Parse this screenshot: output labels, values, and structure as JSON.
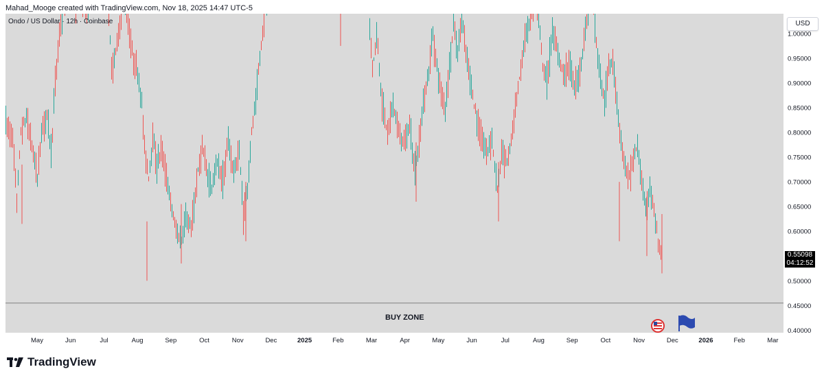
{
  "header": {
    "credit": "Mahad_Mooge created with TradingView.com, Nov 18, 2025 14:47 UTC-5"
  },
  "chart": {
    "legend": "Ondo / US Dollar · 12h · Coinbase",
    "currency_button": "USD",
    "last_price": "0.55098",
    "countdown": "04:12:52",
    "zone_label": "BUY ZONE",
    "footer_brand": "TradingView"
  },
  "colors": {
    "up": "#26a69a",
    "down": "#ef5350",
    "background": "#dadada",
    "zone_line": "#7f7f7f"
  },
  "icons": {
    "event_1": "us-flag-icon",
    "event_2": "blue-flag-icon",
    "logo": "tradingview-logo-icon"
  },
  "chart_data": {
    "type": "candlestick",
    "symbol": "Ondo / US Dollar",
    "interval": "12h",
    "exchange": "Coinbase",
    "ylim": [
      0.395,
      1.04
    ],
    "y_ticks": [
      1.0,
      0.95,
      0.9,
      0.85,
      0.8,
      0.75,
      0.7,
      0.65,
      0.6,
      0.55,
      0.5,
      0.45,
      0.4
    ],
    "y_tick_labels": [
      "1.00000",
      "0.95000",
      "0.90000",
      "0.85000",
      "0.80000",
      "0.75000",
      "0.70000",
      "0.65000",
      "0.60000",
      "0.55000",
      "0.50000",
      "0.45000",
      "0.40000"
    ],
    "x_labels": [
      "May",
      "Jun",
      "Jul",
      "Aug",
      "Sep",
      "Oct",
      "Nov",
      "Dec",
      "2025",
      "Feb",
      "Mar",
      "Apr",
      "May",
      "Jun",
      "Jul",
      "Aug",
      "Sep",
      "Oct",
      "Nov",
      "Dec",
      "2026",
      "Feb",
      "Mar"
    ],
    "x_label_bold": [
      "2025",
      "2026"
    ],
    "horizontal_line": {
      "label": "BUY ZONE",
      "value": 0.455
    },
    "last_price": 0.55098,
    "path": [
      [
        0,
        0.82
      ],
      [
        10,
        0.79
      ],
      [
        16,
        0.66
      ],
      [
        22,
        0.8
      ],
      [
        30,
        0.83
      ],
      [
        40,
        0.76
      ],
      [
        46,
        0.71
      ],
      [
        52,
        0.8
      ],
      [
        60,
        0.84
      ],
      [
        66,
        0.76
      ],
      [
        72,
        0.9
      ],
      [
        78,
        1.0
      ],
      [
        86,
        1.06
      ],
      [
        94,
        1.1
      ],
      [
        102,
        1.06
      ],
      [
        110,
        1.08
      ],
      [
        118,
        1.04
      ],
      [
        126,
        1.08
      ],
      [
        134,
        1.06
      ],
      [
        142,
        1.08
      ],
      [
        148,
        1.1
      ],
      [
        154,
        0.93
      ],
      [
        160,
        0.96
      ],
      [
        166,
        1.02
      ],
      [
        172,
        1.08
      ],
      [
        178,
        1.02
      ],
      [
        184,
        0.96
      ],
      [
        192,
        0.92
      ],
      [
        198,
        0.86
      ],
      [
        202,
        0.77
      ],
      [
        208,
        0.71
      ],
      [
        214,
        0.79
      ],
      [
        220,
        0.73
      ],
      [
        226,
        0.77
      ],
      [
        234,
        0.71
      ],
      [
        240,
        0.66
      ],
      [
        248,
        0.6
      ],
      [
        256,
        0.58
      ],
      [
        262,
        0.63
      ],
      [
        270,
        0.6
      ],
      [
        278,
        0.7
      ],
      [
        286,
        0.77
      ],
      [
        294,
        0.71
      ],
      [
        300,
        0.69
      ],
      [
        308,
        0.74
      ],
      [
        316,
        0.7
      ],
      [
        324,
        0.78
      ],
      [
        332,
        0.72
      ],
      [
        340,
        0.76
      ],
      [
        346,
        0.63
      ],
      [
        352,
        0.69
      ],
      [
        358,
        0.8
      ],
      [
        364,
        0.86
      ],
      [
        370,
        0.95
      ],
      [
        378,
        1.06
      ],
      [
        388,
        1.1
      ]
    ],
    "path_2": [
      [
        526,
        1.1
      ],
      [
        534,
        0.93
      ],
      [
        540,
        1.0
      ],
      [
        548,
        0.86
      ],
      [
        556,
        0.8
      ],
      [
        564,
        0.86
      ],
      [
        572,
        0.8
      ],
      [
        580,
        0.78
      ],
      [
        588,
        0.81
      ],
      [
        596,
        0.72
      ],
      [
        602,
        0.78
      ],
      [
        608,
        0.86
      ],
      [
        616,
        0.92
      ],
      [
        622,
        1.0
      ],
      [
        628,
        0.93
      ],
      [
        634,
        0.88
      ],
      [
        640,
        0.85
      ],
      [
        646,
        0.93
      ],
      [
        652,
        1.02
      ],
      [
        658,
        0.96
      ],
      [
        664,
        1.03
      ],
      [
        670,
        0.96
      ],
      [
        676,
        0.91
      ],
      [
        684,
        0.84
      ],
      [
        692,
        0.79
      ],
      [
        700,
        0.76
      ],
      [
        708,
        0.79
      ],
      [
        716,
        0.68
      ],
      [
        722,
        0.76
      ],
      [
        730,
        0.74
      ],
      [
        738,
        0.8
      ],
      [
        744,
        0.87
      ],
      [
        750,
        0.93
      ],
      [
        756,
        0.99
      ],
      [
        764,
        1.03
      ],
      [
        770,
        1.08
      ],
      [
        776,
        1.04
      ],
      [
        782,
        0.94
      ],
      [
        788,
        0.9
      ],
      [
        796,
        1.0
      ],
      [
        804,
        0.96
      ],
      [
        812,
        0.92
      ],
      [
        820,
        0.94
      ],
      [
        828,
        0.89
      ],
      [
        836,
        0.92
      ],
      [
        842,
        0.99
      ],
      [
        848,
        1.04
      ],
      [
        854,
        1.08
      ],
      [
        860,
        0.98
      ],
      [
        866,
        0.91
      ],
      [
        872,
        0.86
      ],
      [
        878,
        0.93
      ],
      [
        884,
        0.95
      ],
      [
        890,
        0.86
      ],
      [
        896,
        0.78
      ],
      [
        902,
        0.73
      ],
      [
        908,
        0.71
      ],
      [
        914,
        0.75
      ],
      [
        920,
        0.77
      ],
      [
        926,
        0.7
      ],
      [
        932,
        0.64
      ],
      [
        938,
        0.69
      ],
      [
        944,
        0.64
      ],
      [
        950,
        0.58
      ],
      [
        956,
        0.535
      ]
    ],
    "spikes": [
      {
        "x": 24,
        "low": 0.615
      },
      {
        "x": 206,
        "low": 0.5
      },
      {
        "x": 256,
        "low": 0.535
      },
      {
        "x": 350,
        "low": 0.58
      },
      {
        "x": 598,
        "low": 0.66
      },
      {
        "x": 718,
        "low": 0.62
      },
      {
        "x": 894,
        "low": 0.58
      },
      {
        "x": 934,
        "low": 0.55
      },
      {
        "x": 956,
        "low": 0.515
      }
    ]
  }
}
